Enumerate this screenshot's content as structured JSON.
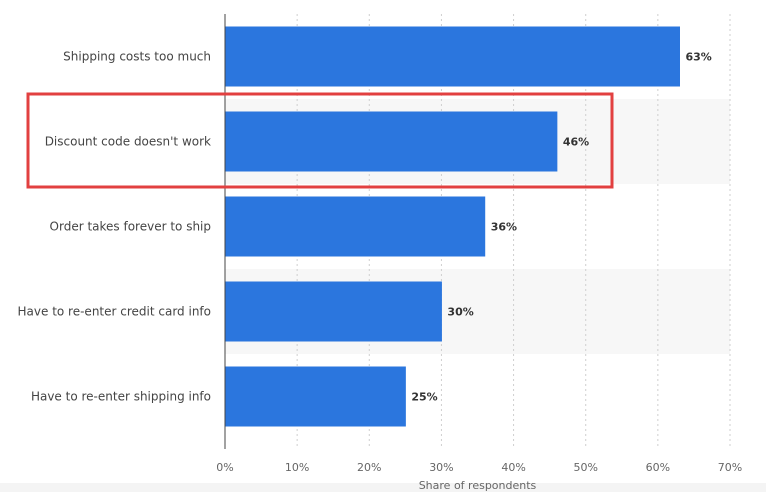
{
  "chart_data": {
    "type": "bar",
    "orientation": "horizontal",
    "categories": [
      "Shipping costs too much",
      "Discount code doesn't work",
      "Order takes forever to ship",
      "Have to re-enter credit card info",
      "Have to re-enter shipping info"
    ],
    "values": [
      63,
      46,
      36,
      30,
      25
    ],
    "value_labels": [
      "63%",
      "46%",
      "36%",
      "30%",
      "25%"
    ],
    "xlabel": "Share of respondents",
    "xlim": [
      0,
      70
    ],
    "xticks": [
      0,
      10,
      20,
      30,
      40,
      50,
      60,
      70
    ],
    "xtick_labels": [
      "0%",
      "10%",
      "20%",
      "30%",
      "40%",
      "50%",
      "60%",
      "70%"
    ],
    "grid": true,
    "highlighted_category_index": 1,
    "colors": {
      "bar": "#2b76de",
      "highlight": "#e24040",
      "band": "#f7f7f7",
      "grid": "#cfcfcf"
    }
  }
}
